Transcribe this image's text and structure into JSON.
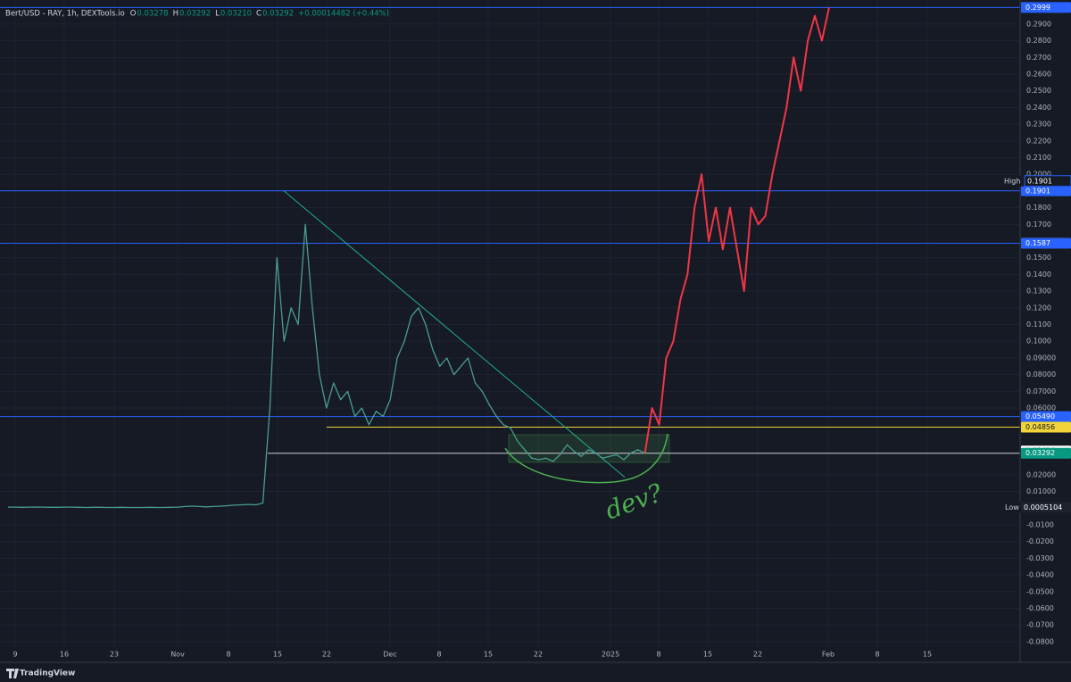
{
  "chart_data": {
    "type": "line",
    "header": {
      "symbol": "Bert/USD - RAY, 1h, DEXTools.io",
      "ohlc": [
        {
          "key": "O",
          "value": "0.03278"
        },
        {
          "key": "H",
          "value": "0.03292"
        },
        {
          "key": "L",
          "value": "0.03210"
        },
        {
          "key": "C",
          "value": "0.03292"
        }
      ],
      "change": "+0.00014482 (+0.44%)"
    },
    "x_labels": [
      "9",
      "16",
      "23",
      "Nov",
      "8",
      "15",
      "22",
      "Dec",
      "8",
      "15",
      "22",
      "2025",
      "8",
      "15",
      "22",
      "Feb",
      "8",
      "15"
    ],
    "series": [
      {
        "color": "#4a9d92",
        "values": [
          0.0006,
          0.0006,
          0.0005,
          0.0006,
          0.0007,
          0.0006,
          0.0005,
          0.0005,
          0.0006,
          0.0006,
          0.0005,
          0.0004,
          0.0005,
          0.0005,
          0.0004,
          0.0004,
          0.0005,
          0.0004,
          0.0004,
          0.0004,
          0.0005,
          0.0004,
          0.0004,
          0.0005,
          0.0006,
          0.001,
          0.0012,
          0.001,
          0.0008,
          0.001,
          0.0012,
          0.0015,
          0.0018,
          0.002,
          0.0022,
          0.002,
          0.003,
          0.06,
          0.15,
          0.1,
          0.12,
          0.11,
          0.17,
          0.12,
          0.08,
          0.06,
          0.075,
          0.065,
          0.07,
          0.055,
          0.06,
          0.05,
          0.058,
          0.055,
          0.065,
          0.09,
          0.1,
          0.115,
          0.12,
          0.11,
          0.095,
          0.085,
          0.09,
          0.08,
          0.085,
          0.09,
          0.075,
          0.07,
          0.062,
          0.055,
          0.05,
          0.048,
          0.04,
          0.035,
          0.03,
          0.029,
          0.03,
          0.028,
          0.032,
          0.038,
          0.034,
          0.031,
          0.035,
          0.033,
          0.03,
          0.031,
          0.032,
          0.029,
          0.033,
          0.035,
          0.03292
        ]
      },
      {
        "color": "#f23645",
        "values": [
          0.033,
          0.06,
          0.05,
          0.09,
          0.1,
          0.125,
          0.14,
          0.18,
          0.2,
          0.16,
          0.18,
          0.155,
          0.18,
          0.155,
          0.13,
          0.18,
          0.17,
          0.175,
          0.2,
          0.22,
          0.24,
          0.27,
          0.25,
          0.28,
          0.295,
          0.28,
          0.2999
        ]
      }
    ],
    "levels": [
      {
        "value": 0.2999,
        "color": "#2962ff"
      },
      {
        "value": 0.1901,
        "color": "#2962ff"
      },
      {
        "value": 0.1587,
        "color": "#2962ff"
      },
      {
        "value": 0.0549,
        "label": "0.05490",
        "color": "#2962ff"
      },
      {
        "value": 0.04856,
        "color": "#f0d43a"
      },
      {
        "value": 0.03426,
        "color": "#ffffff"
      },
      {
        "value": 0.03292,
        "color": "#089981"
      }
    ],
    "high": {
      "label": "High",
      "value": 0.1901
    },
    "low": {
      "label": "Low",
      "value": 0.0005104
    },
    "trendline": [
      0.1901,
      0.0185
    ],
    "range_box": [
      0.0275,
      0.044
    ],
    "annotation": "dev?",
    "ylim": [
      -0.0913,
      0.3044
    ],
    "yticks": [
      {
        "value": 0.29,
        "label": "0.2900"
      },
      {
        "value": 0.28,
        "label": "0.2800"
      },
      {
        "value": 0.27,
        "label": "0.2700"
      },
      {
        "value": 0.26,
        "label": "0.2600"
      },
      {
        "value": 0.25,
        "label": "0.2500"
      },
      {
        "value": 0.24,
        "label": "0.2400"
      },
      {
        "value": 0.23,
        "label": "0.2300"
      },
      {
        "value": 0.22,
        "label": "0.2200"
      },
      {
        "value": 0.21,
        "label": "0.2100"
      },
      {
        "value": 0.2,
        "label": "0.2000"
      },
      {
        "value": 0.18,
        "label": "0.1800"
      },
      {
        "value": 0.17,
        "label": "0.1700"
      },
      {
        "value": 0.15,
        "label": "0.1500"
      },
      {
        "value": 0.14,
        "label": "0.1400"
      },
      {
        "value": 0.13,
        "label": "0.1300"
      },
      {
        "value": 0.12,
        "label": "0.1200"
      },
      {
        "value": 0.11,
        "label": "0.1100"
      },
      {
        "value": 0.1,
        "label": "0.1000"
      },
      {
        "value": 0.09,
        "label": "0.09000"
      },
      {
        "value": 0.08,
        "label": "0.08000"
      },
      {
        "value": 0.07,
        "label": "0.07000"
      },
      {
        "value": 0.06,
        "label": "0.06000"
      },
      {
        "value": 0.02,
        "label": "0.02000"
      },
      {
        "value": 0.01,
        "label": "0.01000"
      },
      {
        "value": -0.01,
        "label": "-0.0100"
      },
      {
        "value": -0.02,
        "label": "-0.0200"
      },
      {
        "value": -0.03,
        "label": "-0.0300"
      },
      {
        "value": -0.04,
        "label": "-0.0400"
      },
      {
        "value": -0.05,
        "label": "-0.0500"
      },
      {
        "value": -0.06,
        "label": "-0.0600"
      },
      {
        "value": -0.07,
        "label": "-0.0700"
      },
      {
        "value": -0.08,
        "label": "-0.0800"
      }
    ],
    "grid": true,
    "footer": "TradingView"
  }
}
